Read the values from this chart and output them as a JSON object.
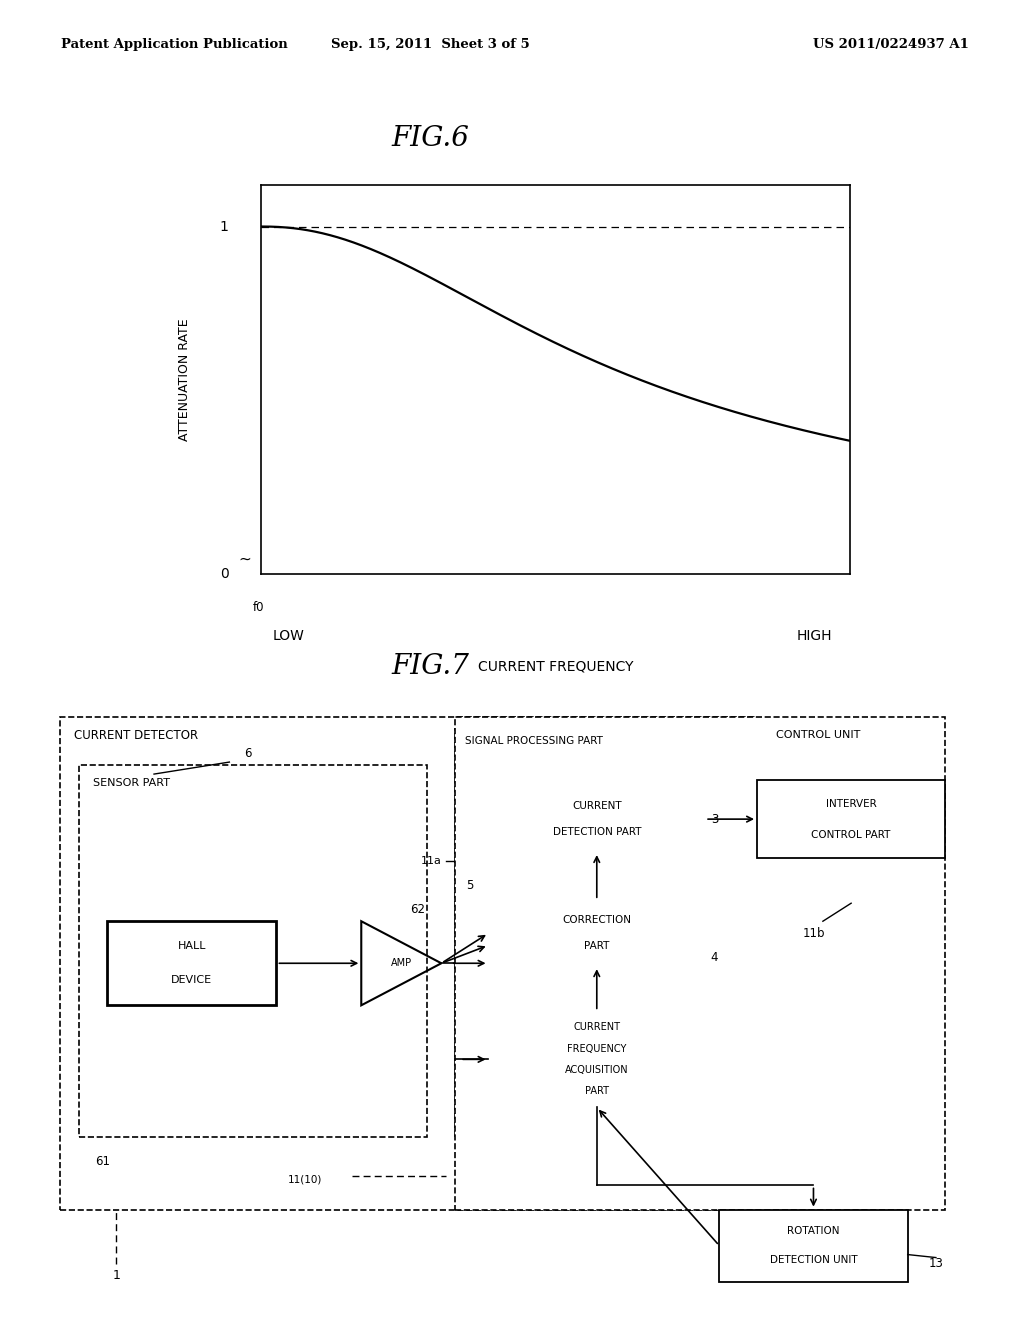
{
  "header_left": "Patent Application Publication",
  "header_center": "Sep. 15, 2011  Sheet 3 of 5",
  "header_right": "US 2011/0224937 A1",
  "fig6_title": "FIG.6",
  "fig6_ylabel": "ATTENUATION RATE",
  "fig6_xlabel": "CURRENT FREQUENCY",
  "fig6_y0_label": "0",
  "fig6_y1_label": "1",
  "fig6_x_low": "LOW",
  "fig6_x_high": "HIGH",
  "fig6_x0_label": "f0",
  "fig7_title": "FIG.7",
  "background_color": "#ffffff",
  "line_color": "#000000"
}
